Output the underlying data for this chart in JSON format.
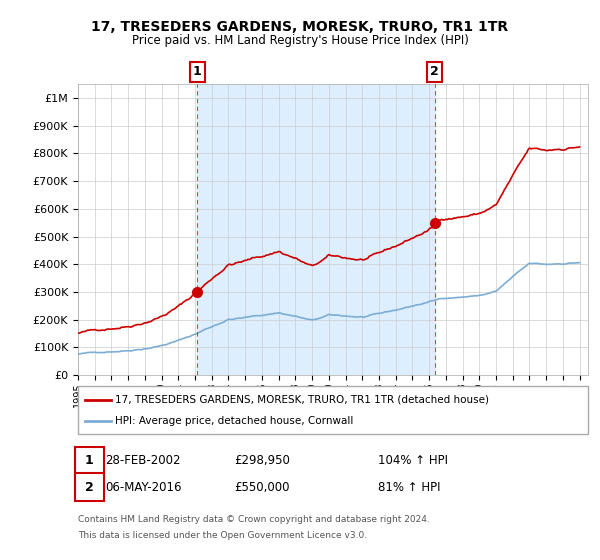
{
  "title": "17, TRESEDERS GARDENS, MORESK, TRURO, TR1 1TR",
  "subtitle": "Price paid vs. HM Land Registry's House Price Index (HPI)",
  "legend_line1": "17, TRESEDERS GARDENS, MORESK, TRURO, TR1 1TR (detached house)",
  "legend_line2": "HPI: Average price, detached house, Cornwall",
  "annotation1_date": "28-FEB-2002",
  "annotation1_price": "£298,950",
  "annotation1_hpi": "104% ↑ HPI",
  "annotation2_date": "06-MAY-2016",
  "annotation2_price": "£550,000",
  "annotation2_hpi": "81% ↑ HPI",
  "footer_line1": "Contains HM Land Registry data © Crown copyright and database right 2024.",
  "footer_line2": "This data is licensed under the Open Government Licence v3.0.",
  "hpi_color": "#7dadd4",
  "price_color": "#cc0000",
  "marker_color": "#cc0000",
  "annotation_box_color": "#cc0000",
  "shade_color": "#ddeeff",
  "ylim_max": 1050000,
  "ylim_min": 0,
  "background_color": "#ffffff",
  "plot_background": "#ffffff",
  "grid_color": "#cccccc",
  "sale1_year": 2002.125,
  "sale2_year": 2016.333,
  "sale1_price": 298950,
  "sale2_price": 550000
}
